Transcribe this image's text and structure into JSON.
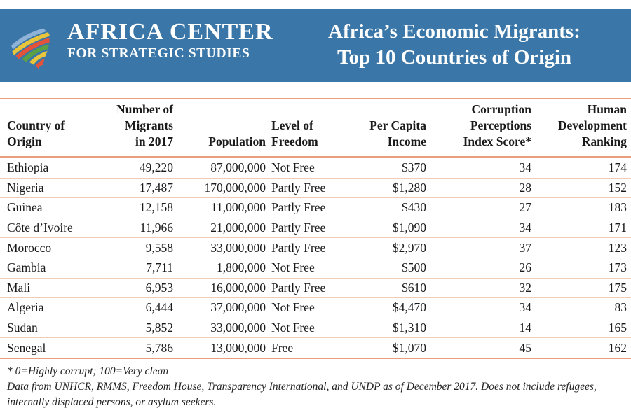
{
  "header": {
    "org_line1": "AFRICA CENTER",
    "org_line2": "FOR STRATEGIC STUDIES",
    "title_line1": "Africa’s Economic Migrants:",
    "title_line2": "Top 10 Countries of Origin",
    "band_color": "#3a77a8",
    "logo_icon": "africa-continent-stripes-icon"
  },
  "chart_data": {
    "type": "table",
    "columns": [
      "Country of Origin",
      "Number of Migrants in 2017",
      "Population",
      "Level of Freedom",
      "Per Capita Income",
      "Corruption Perceptions Index Score*",
      "Human Development Ranking"
    ],
    "header_lines": [
      [
        "Country of",
        "Origin"
      ],
      [
        "Number of",
        "Migrants",
        "in 2017"
      ],
      [
        "Population"
      ],
      [
        "Level of",
        "Freedom"
      ],
      [
        "Per Capita",
        "Income"
      ],
      [
        "Corruption",
        "Perceptions",
        "Index Score*"
      ],
      [
        "Human",
        "Development",
        "Ranking"
      ]
    ],
    "rows": [
      [
        "Ethiopia",
        "49,220",
        "87,000,000",
        "Not Free",
        "$370",
        "34",
        "174"
      ],
      [
        "Nigeria",
        "17,487",
        "170,000,000",
        "Partly Free",
        "$1,280",
        "28",
        "152"
      ],
      [
        "Guinea",
        "12,158",
        "11,000,000",
        "Partly Free",
        "$430",
        "27",
        "183"
      ],
      [
        "Côte d’Ivoire",
        "11,966",
        "21,000,000",
        "Partly Free",
        "$1,090",
        "34",
        "171"
      ],
      [
        "Morocco",
        "9,558",
        "33,000,000",
        "Partly Free",
        "$2,970",
        "37",
        "123"
      ],
      [
        "Gambia",
        "7,711",
        "1,800,000",
        "Not Free",
        "$500",
        "26",
        "173"
      ],
      [
        "Mali",
        "6,953",
        "16,000,000",
        "Partly Free",
        "$610",
        "32",
        "175"
      ],
      [
        "Algeria",
        "6,444",
        "37,000,000",
        "Not Free",
        "$4,470",
        "34",
        "83"
      ],
      [
        "Sudan",
        "5,852",
        "33,000,000",
        "Not Free",
        "$1,310",
        "14",
        "165"
      ],
      [
        "Senegal",
        "5,786",
        "13,000,000",
        "Free",
        "$1,070",
        "45",
        "162"
      ]
    ],
    "rule_color": "#e8a07a"
  },
  "footnotes": {
    "note1": "* 0=Highly corrupt; 100=Very clean",
    "note2": "Data from UNHCR, RMMS, Freedom House, Transparency International, and UNDP as of December 2017. Does not include refugees, internally displaced persons, or asylum seekers."
  }
}
